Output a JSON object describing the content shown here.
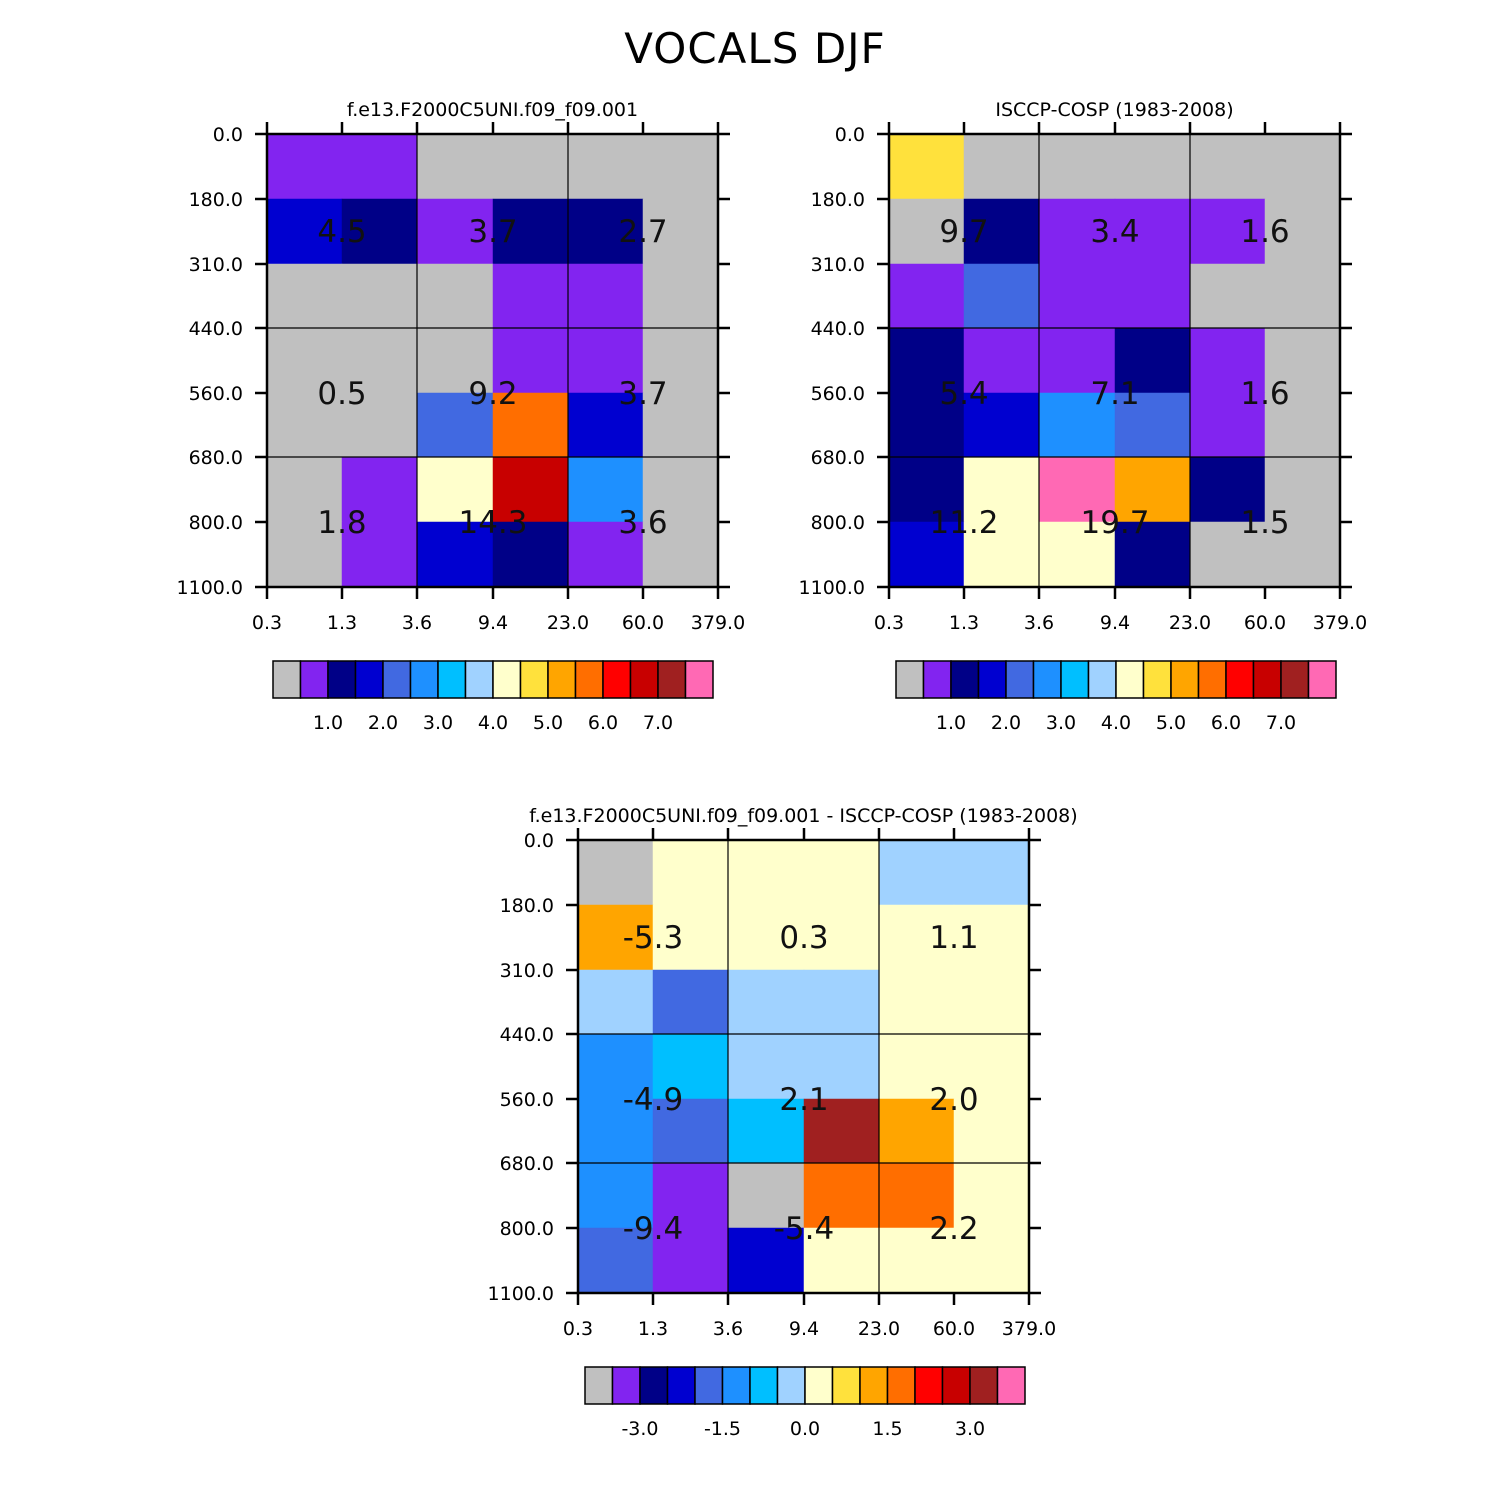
{
  "figure": {
    "title": "VOCALS DJF"
  },
  "palette": [
    "#c0c0c0",
    "#8224f0",
    "#000087",
    "#0000d0",
    "#4169e1",
    "#1e90ff",
    "#00bfff",
    "#a0d2ff",
    "#ffffcc",
    "#ffe13c",
    "#ffa500",
    "#ff6e00",
    "#ff0000",
    "#c80000",
    "#a02020",
    "#ff69b4"
  ],
  "chart_data": [
    {
      "type": "heatmap",
      "title": "f.e13.F2000C5UNI.f09_f09.001",
      "x_edges": [
        "0.3",
        "1.3",
        "3.6",
        "9.4",
        "23.0",
        "60.0",
        "379.0"
      ],
      "y_edges": [
        "0.0",
        "180.0",
        "310.0",
        "440.0",
        "560.0",
        "680.0",
        "800.0",
        "1100.0"
      ],
      "cells": [
        [
          1,
          1,
          0,
          0,
          0,
          0
        ],
        [
          3,
          2,
          1,
          2,
          2,
          0
        ],
        [
          0,
          0,
          0,
          1,
          1,
          0
        ],
        [
          0,
          0,
          0,
          1,
          1,
          0
        ],
        [
          0,
          0,
          4,
          11,
          3,
          0
        ],
        [
          0,
          1,
          8,
          13,
          5,
          0
        ],
        [
          0,
          1,
          3,
          2,
          1,
          0
        ]
      ],
      "box_values": [
        [
          "4.5",
          "3.7",
          "2.7"
        ],
        [
          "0.5",
          "9.2",
          "3.7"
        ],
        [
          "1.8",
          "14.3",
          "3.6"
        ]
      ],
      "colorbar_labels": [
        "1.0",
        "2.0",
        "3.0",
        "4.0",
        "5.0",
        "6.0",
        "7.0"
      ]
    },
    {
      "type": "heatmap",
      "title": "ISCCP-COSP (1983-2008)",
      "x_edges": [
        "0.3",
        "1.3",
        "3.6",
        "9.4",
        "23.0",
        "60.0",
        "379.0"
      ],
      "y_edges": [
        "0.0",
        "180.0",
        "310.0",
        "440.0",
        "560.0",
        "680.0",
        "800.0",
        "1100.0"
      ],
      "cells": [
        [
          9,
          0,
          0,
          0,
          0,
          0
        ],
        [
          0,
          2,
          1,
          1,
          1,
          0
        ],
        [
          1,
          4,
          1,
          1,
          0,
          0
        ],
        [
          2,
          1,
          1,
          2,
          1,
          0
        ],
        [
          2,
          3,
          5,
          4,
          1,
          0
        ],
        [
          2,
          8,
          15,
          10,
          2,
          0
        ],
        [
          3,
          8,
          8,
          2,
          0,
          0
        ]
      ],
      "box_values": [
        [
          "9.7",
          "3.4",
          "1.6"
        ],
        [
          "5.4",
          "7.1",
          "1.6"
        ],
        [
          "11.2",
          "19.7",
          "1.5"
        ]
      ],
      "colorbar_labels": [
        "1.0",
        "2.0",
        "3.0",
        "4.0",
        "5.0",
        "6.0",
        "7.0"
      ]
    },
    {
      "type": "heatmap",
      "title": "f.e13.F2000C5UNI.f09_f09.001 - ISCCP-COSP (1983-2008)",
      "x_edges": [
        "0.3",
        "1.3",
        "3.6",
        "9.4",
        "23.0",
        "60.0",
        "379.0"
      ],
      "y_edges": [
        "0.0",
        "180.0",
        "310.0",
        "440.0",
        "560.0",
        "680.0",
        "800.0",
        "1100.0"
      ],
      "cells": [
        [
          0,
          8,
          8,
          8,
          7,
          7
        ],
        [
          10,
          8,
          8,
          8,
          8,
          8
        ],
        [
          7,
          4,
          7,
          7,
          8,
          8
        ],
        [
          5,
          6,
          7,
          7,
          8,
          8
        ],
        [
          5,
          4,
          6,
          14,
          10,
          8
        ],
        [
          5,
          1,
          0,
          11,
          11,
          8
        ],
        [
          4,
          1,
          3,
          8,
          8,
          8
        ]
      ],
      "box_values": [
        [
          "-5.3",
          "0.3",
          "1.1"
        ],
        [
          "-4.9",
          "2.1",
          "2.0"
        ],
        [
          "-9.4",
          "-5.4",
          "2.2"
        ]
      ],
      "colorbar_labels": [
        "-3.0",
        "-1.5",
        "0.0",
        "1.5",
        "3.0"
      ]
    }
  ]
}
